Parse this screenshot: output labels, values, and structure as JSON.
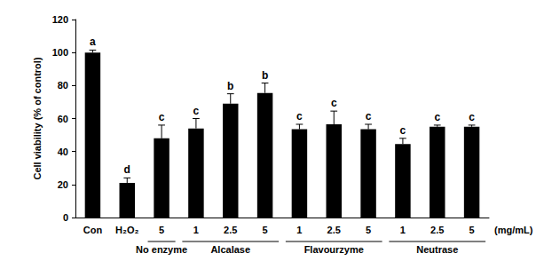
{
  "chart_data": {
    "type": "bar",
    "y_label": "Cell viability (% of control)",
    "categories": [
      "Con",
      "H₂O₂",
      "5",
      "1",
      "2.5",
      "5",
      "1",
      "2.5",
      "5",
      "1",
      "2.5",
      "5"
    ],
    "values": [
      100,
      21,
      48,
      54,
      69,
      75.5,
      53.5,
      56.5,
      53.5,
      44.5,
      55,
      55
    ],
    "errors": [
      1.5,
      3,
      8,
      6,
      6,
      6,
      3,
      8,
      3,
      3.5,
      1,
      1
    ],
    "significance": [
      "a",
      "d",
      "c",
      "c",
      "b",
      "b",
      "c",
      "c",
      "c",
      "c",
      "c",
      "c"
    ],
    "groups": [
      {
        "label": "No enzyme",
        "first": 2,
        "last": 2
      },
      {
        "label": "Alcalase",
        "first": 3,
        "last": 5
      },
      {
        "label": "Flavourzyme",
        "first": 6,
        "last": 8
      },
      {
        "label": "Neutrase",
        "first": 9,
        "last": 11
      }
    ],
    "unit_label": "(mg/mL)",
    "color": "#000000",
    "ylim": [
      0,
      120
    ],
    "yticks": [
      0,
      20,
      40,
      60,
      80,
      100,
      120
    ],
    "grid": false
  }
}
